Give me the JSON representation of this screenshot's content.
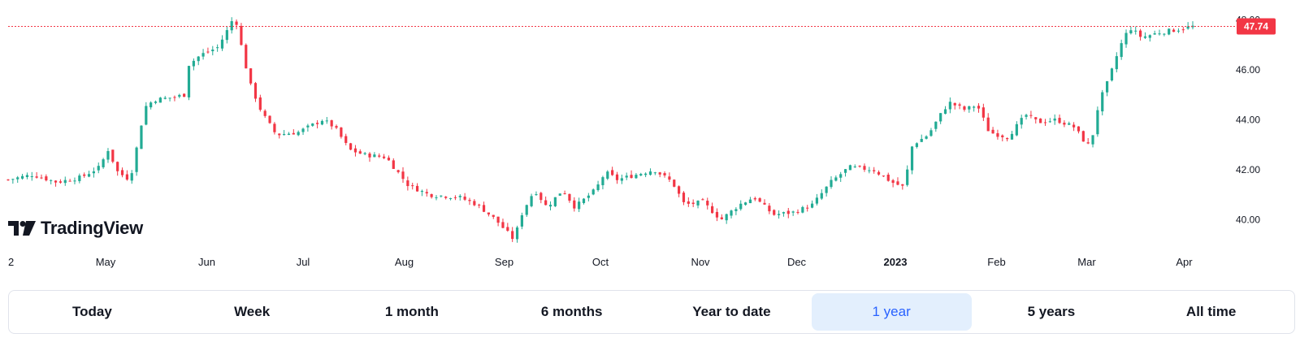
{
  "brand": {
    "logo_text": "TradingView"
  },
  "colors": {
    "up": "#22ab94",
    "down": "#f23645",
    "price_line": "#f23645",
    "active_bg": "#e3effd",
    "active_text": "#2962ff"
  },
  "range_buttons": [
    {
      "label": "Today",
      "active": false
    },
    {
      "label": "Week",
      "active": false
    },
    {
      "label": "1 month",
      "active": false
    },
    {
      "label": "6 months",
      "active": false
    },
    {
      "label": "Year to date",
      "active": false
    },
    {
      "label": "1 year",
      "active": true
    },
    {
      "label": "5 years",
      "active": false
    },
    {
      "label": "All time",
      "active": false
    }
  ],
  "chart_data": {
    "type": "candlestick",
    "y_ticks": [
      "48.00",
      "46.00",
      "44.00",
      "42.00",
      "40.00"
    ],
    "ylim": [
      39.2,
      48.6
    ],
    "x_ticks": [
      {
        "label": "2",
        "t": 0.0,
        "bold": false
      },
      {
        "label": "May",
        "t": 0.08,
        "bold": false
      },
      {
        "label": "Jun",
        "t": 0.163,
        "bold": false
      },
      {
        "label": "Jul",
        "t": 0.242,
        "bold": false
      },
      {
        "label": "Aug",
        "t": 0.325,
        "bold": false
      },
      {
        "label": "Sep",
        "t": 0.407,
        "bold": false
      },
      {
        "label": "Oct",
        "t": 0.486,
        "bold": false
      },
      {
        "label": "Nov",
        "t": 0.568,
        "bold": false
      },
      {
        "label": "Dec",
        "t": 0.647,
        "bold": false
      },
      {
        "label": "2023",
        "t": 0.728,
        "bold": true
      },
      {
        "label": "Feb",
        "t": 0.811,
        "bold": false
      },
      {
        "label": "Mar",
        "t": 0.885,
        "bold": false
      },
      {
        "label": "Apr",
        "t": 0.965,
        "bold": false
      }
    ],
    "last_price": 47.74,
    "last_price_label": "47.74",
    "close_path": [
      [
        0,
        41.6
      ],
      [
        0.02,
        41.8
      ],
      [
        0.04,
        41.5
      ],
      [
        0.06,
        41.7
      ],
      [
        0.075,
        42.1
      ],
      [
        0.082,
        42.8
      ],
      [
        0.09,
        41.9
      ],
      [
        0.1,
        41.6
      ],
      [
        0.106,
        43.0
      ],
      [
        0.112,
        44.5
      ],
      [
        0.12,
        44.8
      ],
      [
        0.135,
        44.9
      ],
      [
        0.145,
        45.0
      ],
      [
        0.148,
        46.2
      ],
      [
        0.158,
        46.6
      ],
      [
        0.172,
        46.9
      ],
      [
        0.18,
        47.6
      ],
      [
        0.186,
        48.2
      ],
      [
        0.192,
        46.8
      ],
      [
        0.198,
        45.5
      ],
      [
        0.208,
        44.3
      ],
      [
        0.22,
        43.4
      ],
      [
        0.238,
        43.5
      ],
      [
        0.258,
        44.0
      ],
      [
        0.268,
        43.7
      ],
      [
        0.28,
        42.8
      ],
      [
        0.292,
        42.6
      ],
      [
        0.31,
        42.5
      ],
      [
        0.328,
        41.4
      ],
      [
        0.345,
        41.0
      ],
      [
        0.37,
        40.9
      ],
      [
        0.385,
        40.6
      ],
      [
        0.4,
        40.0
      ],
      [
        0.415,
        39.2
      ],
      [
        0.422,
        40.3
      ],
      [
        0.432,
        41.2
      ],
      [
        0.442,
        40.5
      ],
      [
        0.455,
        41.2
      ],
      [
        0.465,
        40.5
      ],
      [
        0.482,
        41.2
      ],
      [
        0.49,
        41.9
      ],
      [
        0.5,
        41.6
      ],
      [
        0.515,
        41.8
      ],
      [
        0.53,
        42.0
      ],
      [
        0.545,
        41.5
      ],
      [
        0.555,
        40.6
      ],
      [
        0.57,
        40.7
      ],
      [
        0.585,
        40.0
      ],
      [
        0.6,
        40.6
      ],
      [
        0.612,
        40.9
      ],
      [
        0.628,
        40.2
      ],
      [
        0.645,
        40.3
      ],
      [
        0.66,
        40.6
      ],
      [
        0.675,
        41.5
      ],
      [
        0.69,
        42.1
      ],
      [
        0.71,
        42.0
      ],
      [
        0.725,
        41.5
      ],
      [
        0.735,
        41.3
      ],
      [
        0.742,
        43.0
      ],
      [
        0.755,
        43.4
      ],
      [
        0.765,
        44.2
      ],
      [
        0.772,
        44.7
      ],
      [
        0.785,
        44.4
      ],
      [
        0.795,
        44.6
      ],
      [
        0.805,
        43.5
      ],
      [
        0.82,
        43.3
      ],
      [
        0.835,
        44.2
      ],
      [
        0.845,
        43.9
      ],
      [
        0.86,
        44.0
      ],
      [
        0.875,
        43.7
      ],
      [
        0.882,
        43.2
      ],
      [
        0.888,
        42.9
      ],
      [
        0.895,
        44.7
      ],
      [
        0.903,
        45.6
      ],
      [
        0.912,
        46.9
      ],
      [
        0.92,
        47.7
      ],
      [
        0.93,
        47.3
      ],
      [
        0.945,
        47.5
      ],
      [
        0.958,
        47.6
      ],
      [
        0.972,
        47.74
      ]
    ]
  }
}
